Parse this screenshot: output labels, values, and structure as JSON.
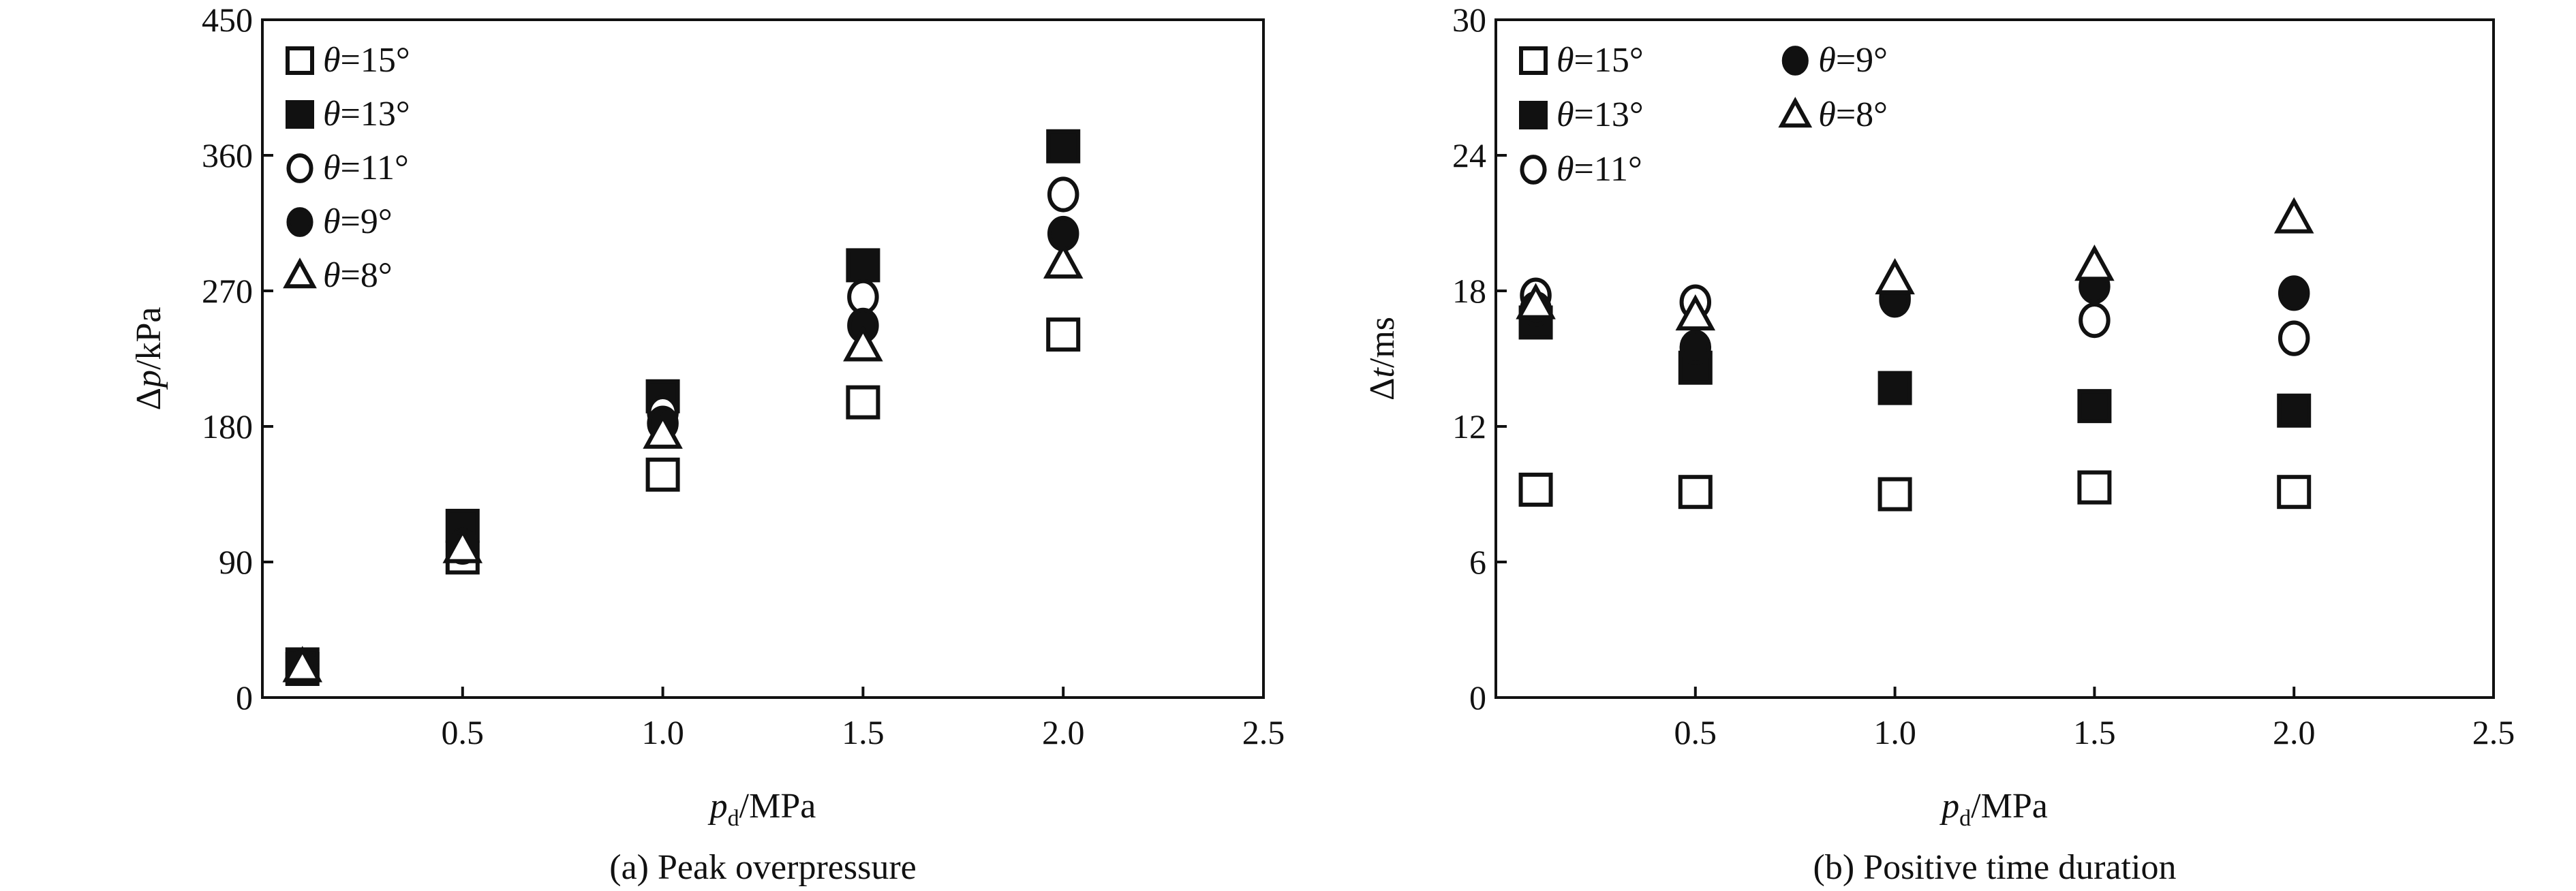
{
  "chart_data": [
    {
      "type": "scatter",
      "caption": "(a) Peak overpressure",
      "xlabel_main": "p",
      "xlabel_sub": "d",
      "xlabel_unit": "/MPa",
      "ylabel_prefix": "Δ",
      "ylabel_var": "p",
      "ylabel_unit": "/kPa",
      "xlim": [
        0,
        2.5
      ],
      "ylim": [
        0,
        450
      ],
      "xticks": [
        0.5,
        1.0,
        1.5,
        2.0,
        2.5
      ],
      "xtick_labels": [
        "0.5",
        "1.0",
        "1.5",
        "2.0",
        "2.5"
      ],
      "yticks": [
        0,
        90,
        180,
        270,
        360,
        450
      ],
      "ytick_labels": [
        "0",
        "90",
        "180",
        "270",
        "360",
        "450"
      ],
      "legend_placement": "top-left",
      "legend_columns": 1,
      "x": [
        0.1,
        0.5,
        1.0,
        1.5,
        2.0
      ],
      "series": [
        {
          "name": "θ=15°",
          "label_var": "θ",
          "label_val": "=15°",
          "marker": "square-open",
          "values": [
            19,
            93,
            148,
            196,
            241
          ]
        },
        {
          "name": "θ=13°",
          "label_var": "θ",
          "label_val": "=13°",
          "marker": "square-filled",
          "values": [
            22,
            114,
            200,
            287,
            366
          ]
        },
        {
          "name": "θ=11°",
          "label_var": "θ",
          "label_val": "=11°",
          "marker": "circle-open",
          "values": [
            20,
            101,
            189,
            266,
            334
          ]
        },
        {
          "name": "θ=9°",
          "label_var": "θ",
          "label_val": "=9°",
          "marker": "circle-filled",
          "values": [
            20,
            100,
            182,
            247,
            308
          ]
        },
        {
          "name": "θ=8°",
          "label_var": "θ",
          "label_val": "=8°",
          "marker": "triangle-open",
          "values": [
            20,
            99,
            175,
            233,
            288
          ]
        }
      ]
    },
    {
      "type": "scatter",
      "caption": "(b) Positive time duration",
      "xlabel_main": "p",
      "xlabel_sub": "d",
      "xlabel_unit": "/MPa",
      "ylabel_prefix": "Δ",
      "ylabel_var": "t",
      "ylabel_unit": "/ms",
      "xlim": [
        0,
        2.5
      ],
      "ylim": [
        0,
        30
      ],
      "xticks": [
        0.5,
        1.0,
        1.5,
        2.0,
        2.5
      ],
      "xtick_labels": [
        "0.5",
        "1.0",
        "1.5",
        "2.0",
        "2.5"
      ],
      "yticks": [
        0,
        6,
        12,
        18,
        24,
        30
      ],
      "ytick_labels": [
        "0",
        "6",
        "12",
        "18",
        "24",
        "30"
      ],
      "legend_placement": "top-left",
      "legend_columns": 2,
      "x": [
        0.1,
        0.5,
        1.0,
        1.5,
        2.0
      ],
      "series": [
        {
          "name": "θ=15°",
          "label_var": "θ",
          "label_val": "=15°",
          "marker": "square-open",
          "values": [
            9.2,
            9.1,
            9.0,
            9.3,
            9.1
          ]
        },
        {
          "name": "θ=13°",
          "label_var": "θ",
          "label_val": "=13°",
          "marker": "square-filled",
          "values": [
            16.6,
            14.6,
            13.7,
            12.9,
            12.7
          ]
        },
        {
          "name": "θ=11°",
          "label_var": "θ",
          "label_val": "=11°",
          "marker": "circle-open",
          "values": [
            17.8,
            17.5,
            17.7,
            16.7,
            15.9
          ]
        },
        {
          "name": "θ=9°",
          "label_var": "θ",
          "label_val": "=9°",
          "marker": "circle-filled",
          "values": [
            17.2,
            15.5,
            17.6,
            18.2,
            17.9
          ]
        },
        {
          "name": "θ=8°",
          "label_var": "θ",
          "label_val": "=8°",
          "marker": "triangle-open",
          "values": [
            17.4,
            16.9,
            18.5,
            19.1,
            21.2
          ]
        }
      ]
    }
  ]
}
